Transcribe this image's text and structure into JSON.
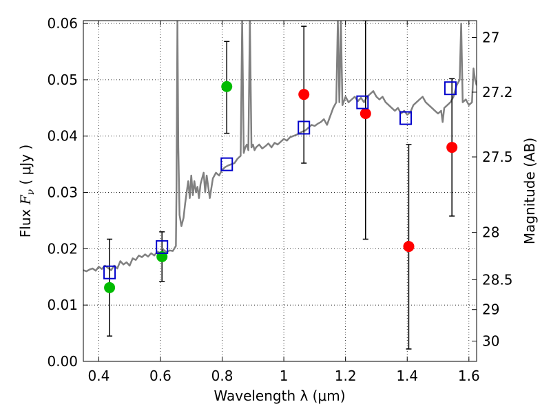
{
  "chart_data": {
    "type": "scatter",
    "title": "",
    "xlabel": "Wavelength  λ (μm)",
    "ylabel": "Flux  F_ν  ( μJy )",
    "ylabel_parts": {
      "pre": "Flux  ",
      "sym": "F",
      "sub": "ν",
      "post": "  ( μJy )"
    },
    "y2label": "Magnitude (AB)",
    "xlim": [
      0.35,
      1.625
    ],
    "ylim": [
      0.0,
      0.0605
    ],
    "grid": true,
    "x_ticks": [
      {
        "v": 0.4,
        "label": "0.4"
      },
      {
        "v": 0.6,
        "label": "0.6"
      },
      {
        "v": 0.8,
        "label": "0.8"
      },
      {
        "v": 1.0,
        "label": "1"
      },
      {
        "v": 1.2,
        "label": "1.2"
      },
      {
        "v": 1.4,
        "label": "1.4"
      },
      {
        "v": 1.6,
        "label": "1.6"
      }
    ],
    "y_ticks": [
      {
        "v": 0.0,
        "label": "0.00"
      },
      {
        "v": 0.01,
        "label": "0.01"
      },
      {
        "v": 0.02,
        "label": "0.02"
      },
      {
        "v": 0.03,
        "label": "0.03"
      },
      {
        "v": 0.04,
        "label": "0.04"
      },
      {
        "v": 0.05,
        "label": "0.05"
      },
      {
        "v": 0.06,
        "label": "0.06"
      }
    ],
    "y2_ticks": [
      {
        "flux": 0.0575,
        "label": "27"
      },
      {
        "flux": 0.0478,
        "label": "27.2"
      },
      {
        "flux": 0.0363,
        "label": "27.5"
      },
      {
        "flux": 0.0229,
        "label": "28"
      },
      {
        "flux": 0.0145,
        "label": "28.5"
      },
      {
        "flux": 0.0092,
        "label": "29"
      },
      {
        "flux": 0.0036,
        "label": "30"
      }
    ],
    "series": [
      {
        "kind": "line",
        "color": "#808080",
        "points": [
          [
            0.35,
            0.0162
          ],
          [
            0.36,
            0.016
          ],
          [
            0.37,
            0.0163
          ],
          [
            0.38,
            0.0165
          ],
          [
            0.39,
            0.0161
          ],
          [
            0.4,
            0.0168
          ],
          [
            0.41,
            0.0164
          ],
          [
            0.42,
            0.017
          ],
          [
            0.43,
            0.0166
          ],
          [
            0.44,
            0.0162
          ],
          [
            0.45,
            0.017
          ],
          [
            0.46,
            0.0165
          ],
          [
            0.47,
            0.0178
          ],
          [
            0.48,
            0.0172
          ],
          [
            0.49,
            0.0176
          ],
          [
            0.5,
            0.017
          ],
          [
            0.51,
            0.0183
          ],
          [
            0.52,
            0.018
          ],
          [
            0.53,
            0.0188
          ],
          [
            0.54,
            0.0185
          ],
          [
            0.55,
            0.019
          ],
          [
            0.56,
            0.0186
          ],
          [
            0.57,
            0.0192
          ],
          [
            0.58,
            0.0188
          ],
          [
            0.59,
            0.0195
          ],
          [
            0.6,
            0.0192
          ],
          [
            0.61,
            0.0198
          ],
          [
            0.62,
            0.0194
          ],
          [
            0.63,
            0.0197
          ],
          [
            0.64,
            0.0196
          ],
          [
            0.65,
            0.0205
          ],
          [
            0.652,
            0.03
          ],
          [
            0.655,
            0.0605
          ],
          [
            0.658,
            0.038
          ],
          [
            0.662,
            0.026
          ],
          [
            0.668,
            0.024
          ],
          [
            0.675,
            0.0255
          ],
          [
            0.68,
            0.028
          ],
          [
            0.685,
            0.03
          ],
          [
            0.69,
            0.032
          ],
          [
            0.695,
            0.029
          ],
          [
            0.7,
            0.033
          ],
          [
            0.705,
            0.0295
          ],
          [
            0.71,
            0.032
          ],
          [
            0.715,
            0.03
          ],
          [
            0.72,
            0.031
          ],
          [
            0.725,
            0.029
          ],
          [
            0.73,
            0.0315
          ],
          [
            0.74,
            0.0335
          ],
          [
            0.745,
            0.03
          ],
          [
            0.75,
            0.033
          ],
          [
            0.76,
            0.029
          ],
          [
            0.77,
            0.0325
          ],
          [
            0.78,
            0.0335
          ],
          [
            0.79,
            0.033
          ],
          [
            0.8,
            0.034
          ],
          [
            0.81,
            0.0345
          ],
          [
            0.82,
            0.0348
          ],
          [
            0.83,
            0.035
          ],
          [
            0.84,
            0.0352
          ],
          [
            0.85,
            0.036
          ],
          [
            0.86,
            0.0365
          ],
          [
            0.865,
            0.0605
          ],
          [
            0.87,
            0.037
          ],
          [
            0.875,
            0.038
          ],
          [
            0.88,
            0.0385
          ],
          [
            0.885,
            0.0375
          ],
          [
            0.89,
            0.0605
          ],
          [
            0.895,
            0.038
          ],
          [
            0.9,
            0.0385
          ],
          [
            0.905,
            0.0375
          ],
          [
            0.91,
            0.038
          ],
          [
            0.92,
            0.0385
          ],
          [
            0.93,
            0.0378
          ],
          [
            0.94,
            0.0382
          ],
          [
            0.95,
            0.0387
          ],
          [
            0.96,
            0.038
          ],
          [
            0.97,
            0.0388
          ],
          [
            0.98,
            0.0385
          ],
          [
            0.99,
            0.039
          ],
          [
            1.0,
            0.0395
          ],
          [
            1.01,
            0.0392
          ],
          [
            1.02,
            0.0398
          ],
          [
            1.03,
            0.04
          ],
          [
            1.04,
            0.0402
          ],
          [
            1.05,
            0.0405
          ],
          [
            1.06,
            0.0408
          ],
          [
            1.07,
            0.041
          ],
          [
            1.08,
            0.0415
          ],
          [
            1.09,
            0.042
          ],
          [
            1.1,
            0.0418
          ],
          [
            1.11,
            0.0422
          ],
          [
            1.12,
            0.0425
          ],
          [
            1.13,
            0.043
          ],
          [
            1.14,
            0.042
          ],
          [
            1.15,
            0.0435
          ],
          [
            1.16,
            0.045
          ],
          [
            1.17,
            0.046
          ],
          [
            1.175,
            0.0605
          ],
          [
            1.18,
            0.046
          ],
          [
            1.185,
            0.0605
          ],
          [
            1.19,
            0.0455
          ],
          [
            1.2,
            0.047
          ],
          [
            1.21,
            0.046
          ],
          [
            1.22,
            0.0465
          ],
          [
            1.23,
            0.047
          ],
          [
            1.24,
            0.0462
          ],
          [
            1.25,
            0.0468
          ],
          [
            1.26,
            0.046
          ],
          [
            1.27,
            0.047
          ],
          [
            1.28,
            0.0475
          ],
          [
            1.29,
            0.048
          ],
          [
            1.3,
            0.047
          ],
          [
            1.31,
            0.0465
          ],
          [
            1.32,
            0.047
          ],
          [
            1.33,
            0.046
          ],
          [
            1.34,
            0.0455
          ],
          [
            1.35,
            0.045
          ],
          [
            1.36,
            0.0445
          ],
          [
            1.37,
            0.045
          ],
          [
            1.38,
            0.044
          ],
          [
            1.39,
            0.0445
          ],
          [
            1.4,
            0.0438
          ],
          [
            1.41,
            0.0442
          ],
          [
            1.42,
            0.0455
          ],
          [
            1.43,
            0.046
          ],
          [
            1.44,
            0.0465
          ],
          [
            1.45,
            0.047
          ],
          [
            1.46,
            0.046
          ],
          [
            1.47,
            0.0455
          ],
          [
            1.48,
            0.045
          ],
          [
            1.49,
            0.0445
          ],
          [
            1.5,
            0.044
          ],
          [
            1.51,
            0.0445
          ],
          [
            1.515,
            0.0425
          ],
          [
            1.52,
            0.045
          ],
          [
            1.53,
            0.0455
          ],
          [
            1.54,
            0.046
          ],
          [
            1.55,
            0.047
          ],
          [
            1.56,
            0.049
          ],
          [
            1.57,
            0.05
          ],
          [
            1.575,
            0.06
          ],
          [
            1.58,
            0.046
          ],
          [
            1.59,
            0.0465
          ],
          [
            1.6,
            0.0455
          ],
          [
            1.61,
            0.046
          ],
          [
            1.615,
            0.052
          ],
          [
            1.62,
            0.05
          ],
          [
            1.625,
            0.049
          ]
        ]
      },
      {
        "kind": "errorbar",
        "color": "#000000",
        "bars": [
          {
            "x": 0.435,
            "lo": 0.0045,
            "hi": 0.0217
          },
          {
            "x": 0.605,
            "lo": 0.0142,
            "hi": 0.023
          },
          {
            "x": 0.815,
            "lo": 0.0405,
            "hi": 0.0568
          },
          {
            "x": 1.065,
            "lo": 0.0352,
            "hi": 0.0595
          },
          {
            "x": 1.265,
            "lo": 0.0217,
            "hi": 0.0605
          },
          {
            "x": 1.405,
            "lo": 0.0022,
            "hi": 0.0385
          },
          {
            "x": 1.545,
            "lo": 0.0258,
            "hi": 0.0502
          }
        ]
      },
      {
        "kind": "points",
        "marker": "circle",
        "color": "#00bb00",
        "points": [
          [
            0.435,
            0.0131
          ],
          [
            0.605,
            0.0186
          ],
          [
            0.815,
            0.0488
          ]
        ]
      },
      {
        "kind": "points",
        "marker": "circle",
        "color": "#ff0000",
        "points": [
          [
            1.065,
            0.0474
          ],
          [
            1.265,
            0.044
          ],
          [
            1.405,
            0.0204
          ],
          [
            1.545,
            0.038
          ]
        ]
      },
      {
        "kind": "points",
        "marker": "square",
        "color": "#0000cc",
        "points": [
          [
            0.435,
            0.0158
          ],
          [
            0.605,
            0.0203
          ],
          [
            0.815,
            0.035
          ],
          [
            1.065,
            0.0415
          ],
          [
            1.255,
            0.046
          ],
          [
            1.395,
            0.0432
          ],
          [
            1.54,
            0.0485
          ]
        ]
      }
    ]
  }
}
